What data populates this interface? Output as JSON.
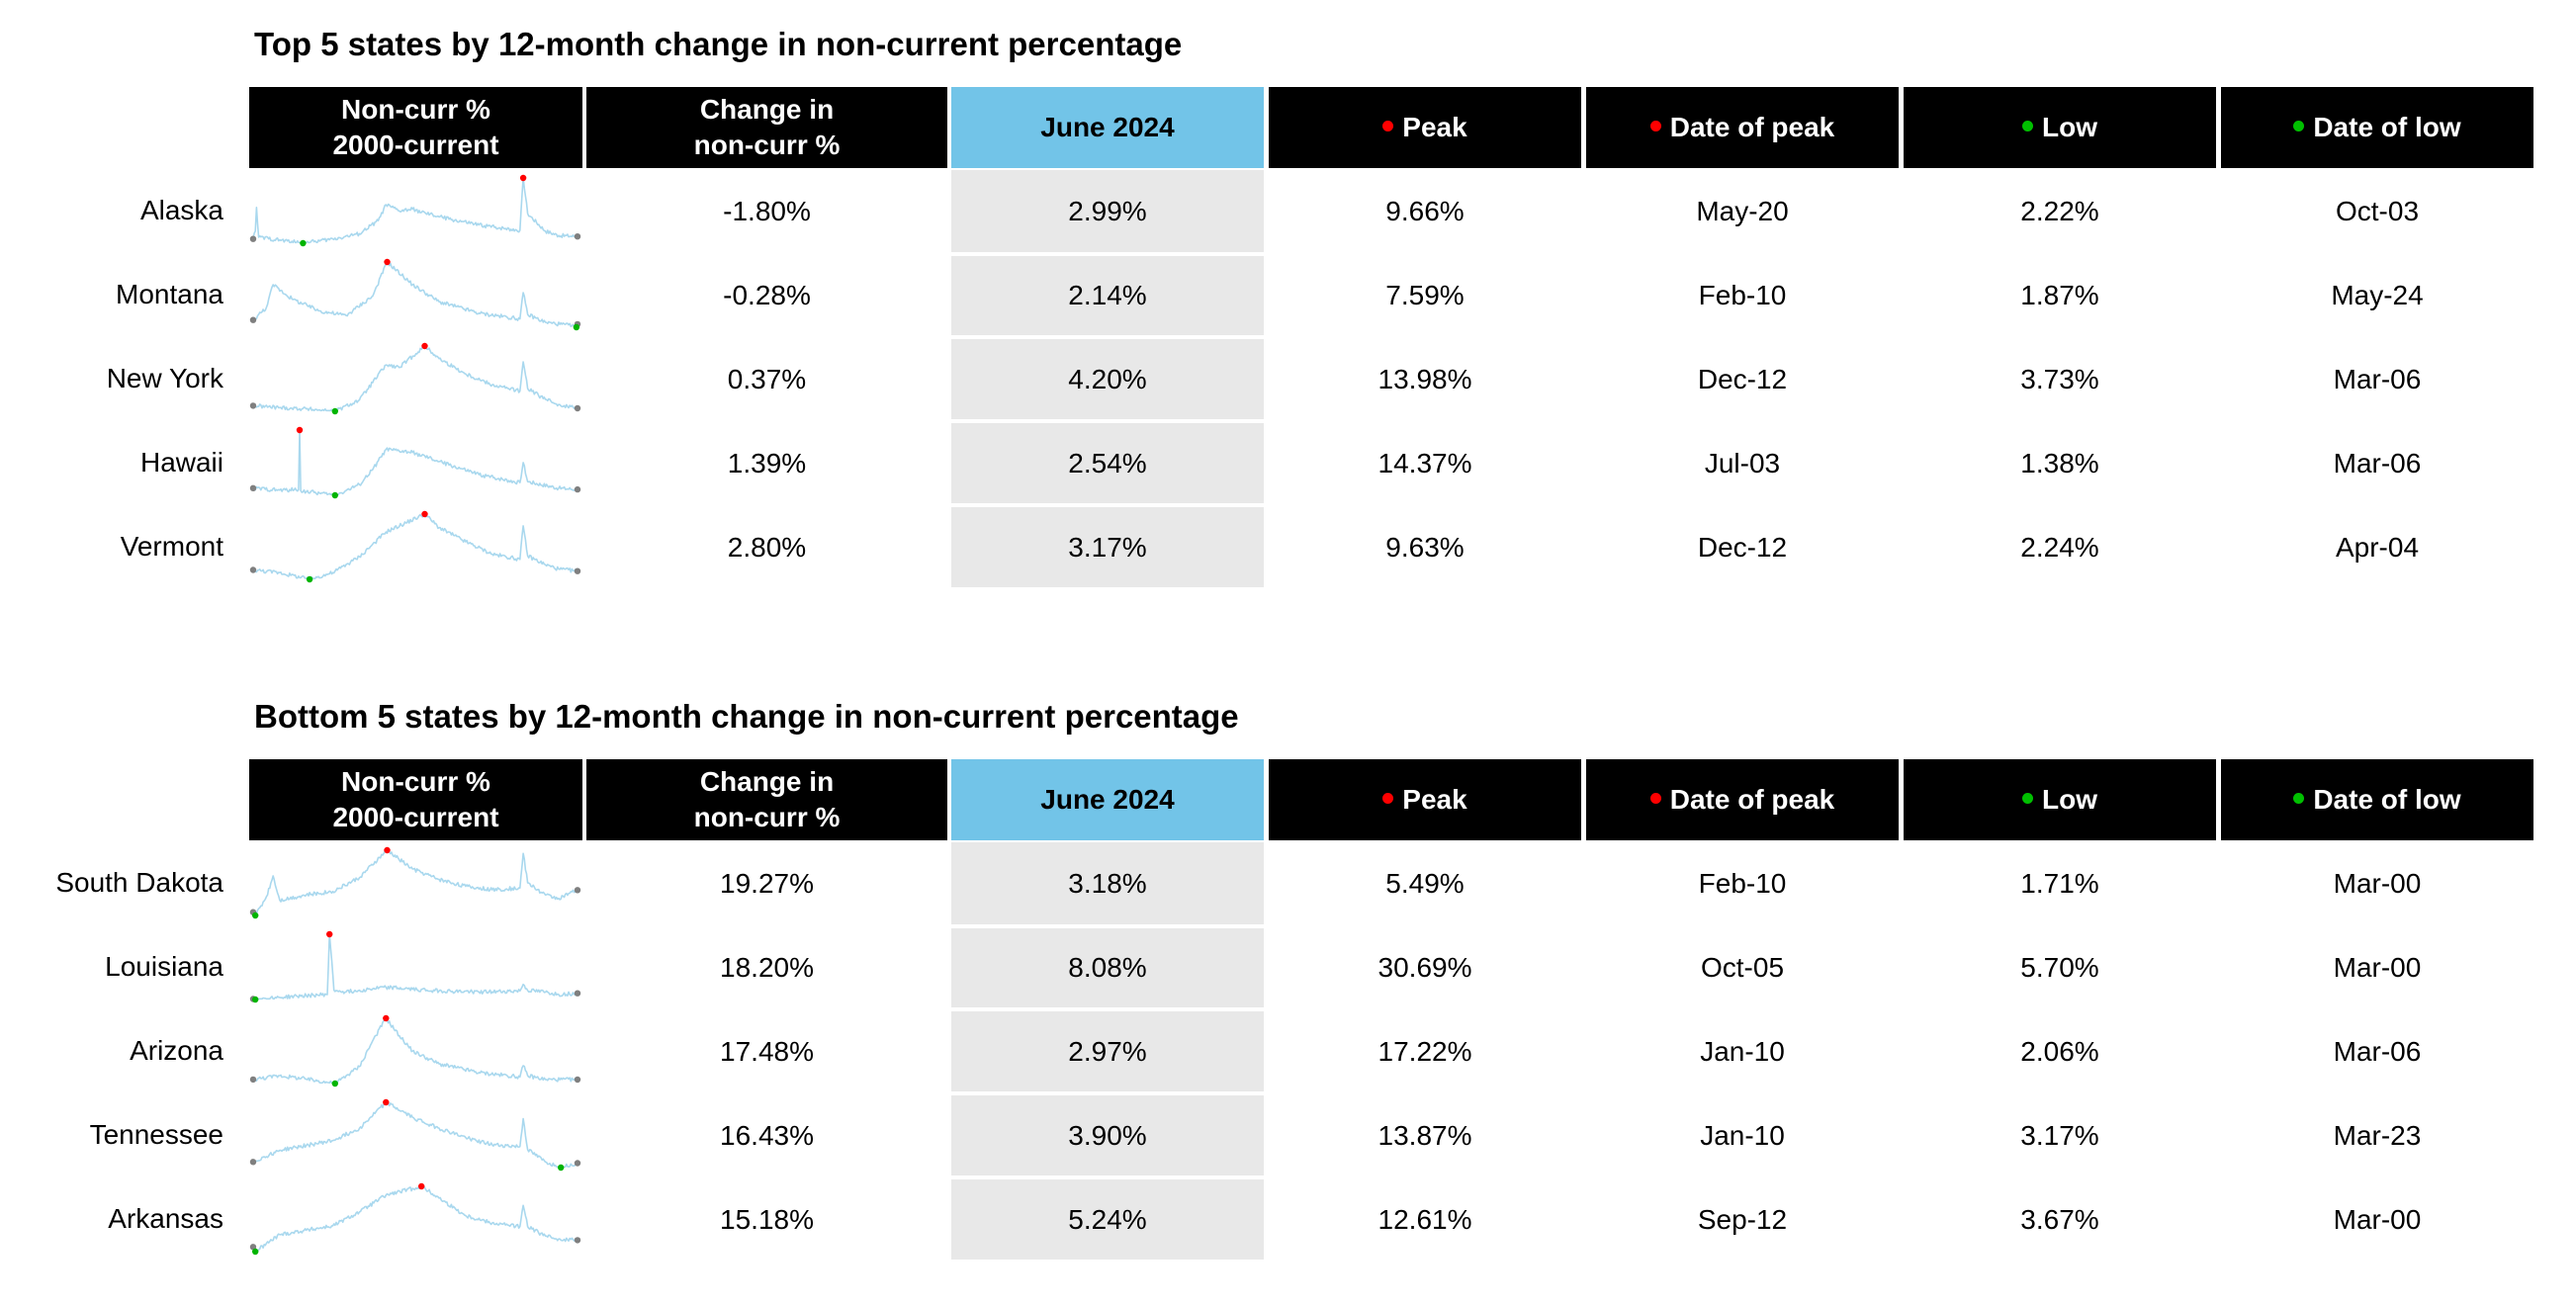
{
  "colors": {
    "header_bg": "#000000",
    "header_text": "#ffffff",
    "highlight_header": "#72c4e8",
    "highlight_cells": "#e8e8e8",
    "sparkline": "#a9d8ee",
    "peak_marker": "#ff0000",
    "low_marker": "#00b400",
    "endpoint_marker": "#7f7f7f"
  },
  "headers": {
    "spark_line1": "Non-curr %",
    "spark_line2": "2000-current",
    "change_line1": "Change in",
    "change_line2": "non-curr %",
    "month": "June 2024",
    "peak": "Peak",
    "peak_date": "Date of peak",
    "low": "Low",
    "low_date": "Date of low"
  },
  "top": {
    "title": "Top 5 states by 12-month change in non-current percentage",
    "rows": [
      {
        "state": "Alaska",
        "change": "-1.80%",
        "current": "2.99%",
        "peak": "9.66%",
        "peak_date": "May-20",
        "low": "2.22%",
        "low_date": "Oct-03"
      },
      {
        "state": "Montana",
        "change": "-0.28%",
        "current": "2.14%",
        "peak": "7.59%",
        "peak_date": "Feb-10",
        "low": "1.87%",
        "low_date": "May-24"
      },
      {
        "state": "New York",
        "change": "0.37%",
        "current": "4.20%",
        "peak": "13.98%",
        "peak_date": "Dec-12",
        "low": "3.73%",
        "low_date": "Mar-06"
      },
      {
        "state": "Hawaii",
        "change": "1.39%",
        "current": "2.54%",
        "peak": "14.37%",
        "peak_date": "Jul-03",
        "low": "1.38%",
        "low_date": "Mar-06"
      },
      {
        "state": "Vermont",
        "change": "2.80%",
        "current": "3.17%",
        "peak": "9.63%",
        "peak_date": "Dec-12",
        "low": "2.24%",
        "low_date": "Apr-04"
      }
    ]
  },
  "bottom": {
    "title": "Bottom 5 states by 12-month change in non-current percentage",
    "rows": [
      {
        "state": "South Dakota",
        "change": "19.27%",
        "current": "3.18%",
        "peak": "5.49%",
        "peak_date": "Feb-10",
        "low": "1.71%",
        "low_date": "Mar-00"
      },
      {
        "state": "Louisiana",
        "change": "18.20%",
        "current": "8.08%",
        "peak": "30.69%",
        "peak_date": "Oct-05",
        "low": "5.70%",
        "low_date": "Mar-00"
      },
      {
        "state": "Arizona",
        "change": "17.48%",
        "current": "2.97%",
        "peak": "17.22%",
        "peak_date": "Jan-10",
        "low": "2.06%",
        "low_date": "Mar-06"
      },
      {
        "state": "Tennessee",
        "change": "16.43%",
        "current": "3.90%",
        "peak": "13.87%",
        "peak_date": "Jan-10",
        "low": "3.17%",
        "low_date": "Mar-23"
      },
      {
        "state": "Arkansas",
        "change": "15.18%",
        "current": "5.24%",
        "peak": "12.61%",
        "peak_date": "Sep-12",
        "low": "3.67%",
        "low_date": "Mar-00"
      }
    ]
  },
  "chart_data": {
    "type": "table",
    "sparkline_period": {
      "start": "Jan-00",
      "end": "Jun-24"
    },
    "sparklines": [
      {
        "state": "Alaska",
        "start": 2.7,
        "end": 2.99,
        "peak": 9.66,
        "peak_date": "May-20",
        "low": 2.22,
        "low_date": "Oct-03",
        "knots": [
          [
            "Jan-00",
            2.7
          ],
          [
            "Mar-00",
            3.6
          ],
          [
            "Apr-00",
            6.3
          ],
          [
            "Jun-00",
            2.9
          ],
          [
            "Oct-03",
            2.22
          ],
          [
            "Jan-06",
            2.7
          ],
          [
            "Jan-08",
            3.3
          ],
          [
            "Jun-09",
            4.8
          ],
          [
            "Jan-10",
            6.6
          ],
          [
            "Jan-11",
            5.9
          ],
          [
            "Jan-12",
            6.1
          ],
          [
            "Jan-13",
            5.6
          ],
          [
            "Jan-15",
            4.9
          ],
          [
            "Jan-17",
            4.3
          ],
          [
            "Jan-19",
            3.9
          ],
          [
            "Feb-20",
            3.7
          ],
          [
            "May-20",
            9.66
          ],
          [
            "Sep-20",
            5.6
          ],
          [
            "Jan-22",
            3.6
          ],
          [
            "Jan-23",
            3.1
          ],
          [
            "Jun-24",
            2.99
          ]
        ]
      },
      {
        "state": "Montana",
        "start": 2.5,
        "end": 2.14,
        "peak": 7.59,
        "peak_date": "Feb-10",
        "low": 1.87,
        "low_date": "May-24",
        "knots": [
          [
            "Jan-00",
            2.5
          ],
          [
            "Jan-01",
            3.6
          ],
          [
            "Jul-01",
            5.6
          ],
          [
            "Jan-03",
            4.3
          ],
          [
            "Jan-05",
            3.3
          ],
          [
            "Jan-07",
            2.9
          ],
          [
            "Jan-09",
            4.6
          ],
          [
            "Feb-10",
            7.59
          ],
          [
            "Jan-12",
            5.6
          ],
          [
            "Jan-14",
            4.1
          ],
          [
            "Jan-17",
            3.1
          ],
          [
            "Feb-20",
            2.6
          ],
          [
            "May-20",
            4.9
          ],
          [
            "Sep-20",
            3.0
          ],
          [
            "Jan-22",
            2.3
          ],
          [
            "Jan-24",
            2.0
          ],
          [
            "May-24",
            1.87
          ],
          [
            "Jun-24",
            2.14
          ]
        ]
      },
      {
        "state": "New York",
        "start": 4.6,
        "end": 4.2,
        "peak": 13.98,
        "peak_date": "Dec-12",
        "low": 3.73,
        "low_date": "Mar-06",
        "knots": [
          [
            "Jan-00",
            4.6
          ],
          [
            "Jan-02",
            4.3
          ],
          [
            "Jan-04",
            4.1
          ],
          [
            "Mar-06",
            3.73
          ],
          [
            "Jan-08",
            5.5
          ],
          [
            "Jan-10",
            11.0
          ],
          [
            "Jan-11",
            10.6
          ],
          [
            "Dec-12",
            13.98
          ],
          [
            "Jan-14",
            12.0
          ],
          [
            "Jan-16",
            9.6
          ],
          [
            "Jan-18",
            7.9
          ],
          [
            "Feb-20",
            6.9
          ],
          [
            "May-20",
            11.5
          ],
          [
            "Sep-20",
            7.3
          ],
          [
            "Jan-22",
            5.6
          ],
          [
            "Jan-23",
            4.8
          ],
          [
            "Jun-24",
            4.2
          ]
        ]
      },
      {
        "state": "Hawaii",
        "start": 2.8,
        "end": 2.54,
        "peak": 14.37,
        "peak_date": "Jul-03",
        "low": 1.38,
        "low_date": "Mar-06",
        "knots": [
          [
            "Jan-00",
            2.8
          ],
          [
            "Jan-02",
            2.4
          ],
          [
            "Jun-03",
            2.5
          ],
          [
            "Jul-03",
            14.37
          ],
          [
            "Aug-03",
            2.3
          ],
          [
            "Jan-05",
            1.8
          ],
          [
            "Mar-06",
            1.38
          ],
          [
            "Jan-08",
            3.5
          ],
          [
            "Jan-09",
            6.5
          ],
          [
            "Jan-10",
            10.5
          ],
          [
            "Jan-12",
            9.9
          ],
          [
            "Jan-14",
            8.1
          ],
          [
            "Jan-17",
            5.5
          ],
          [
            "Feb-20",
            3.9
          ],
          [
            "May-20",
            7.9
          ],
          [
            "Sep-20",
            4.1
          ],
          [
            "Jan-23",
            2.8
          ],
          [
            "Jun-24",
            2.54
          ]
        ]
      },
      {
        "state": "Vermont",
        "start": 3.3,
        "end": 3.17,
        "peak": 9.63,
        "peak_date": "Dec-12",
        "low": 2.24,
        "low_date": "Apr-04",
        "knots": [
          [
            "Jan-00",
            3.3
          ],
          [
            "Jan-02",
            3.0
          ],
          [
            "Apr-04",
            2.24
          ],
          [
            "Jan-06",
            3.0
          ],
          [
            "Jan-08",
            4.8
          ],
          [
            "Jan-10",
            7.6
          ],
          [
            "Dec-12",
            9.63
          ],
          [
            "Jan-14",
            8.1
          ],
          [
            "Jan-16",
            6.5
          ],
          [
            "Jan-18",
            5.1
          ],
          [
            "Feb-20",
            4.5
          ],
          [
            "May-20",
            8.3
          ],
          [
            "Sep-20",
            4.9
          ],
          [
            "Jan-22",
            3.9
          ],
          [
            "Jan-23",
            3.4
          ],
          [
            "Jun-24",
            3.17
          ]
        ]
      },
      {
        "state": "South Dakota",
        "start": 1.9,
        "end": 3.18,
        "peak": 5.49,
        "peak_date": "Feb-10",
        "low": 1.71,
        "low_date": "Mar-00",
        "knots": [
          [
            "Jan-00",
            1.9
          ],
          [
            "Mar-00",
            1.71
          ],
          [
            "Jan-01",
            2.8
          ],
          [
            "Jul-01",
            4.0
          ],
          [
            "Jan-02",
            2.6
          ],
          [
            "Jan-04",
            2.9
          ],
          [
            "Jan-06",
            3.1
          ],
          [
            "Jan-08",
            3.9
          ],
          [
            "Feb-10",
            5.49
          ],
          [
            "Jan-12",
            4.4
          ],
          [
            "Jan-14",
            3.8
          ],
          [
            "Jan-16",
            3.4
          ],
          [
            "Jan-18",
            3.2
          ],
          [
            "Feb-20",
            3.3
          ],
          [
            "May-20",
            5.3
          ],
          [
            "Sep-20",
            3.6
          ],
          [
            "Jan-22",
            2.9
          ],
          [
            "Jan-23",
            2.7
          ],
          [
            "Jun-24",
            3.18
          ]
        ]
      },
      {
        "state": "Louisiana",
        "start": 5.9,
        "end": 8.08,
        "peak": 30.69,
        "peak_date": "Oct-05",
        "low": 5.7,
        "low_date": "Mar-00",
        "knots": [
          [
            "Jan-00",
            5.9
          ],
          [
            "Mar-00",
            5.7
          ],
          [
            "Jan-02",
            6.5
          ],
          [
            "Jan-04",
            7.2
          ],
          [
            "Aug-05",
            7.6
          ],
          [
            "Oct-05",
            30.69
          ],
          [
            "Feb-06",
            9.3
          ],
          [
            "Jan-07",
            8.6
          ],
          [
            "Jan-10",
            10.4
          ],
          [
            "Jan-12",
            9.6
          ],
          [
            "Jan-15",
            8.8
          ],
          [
            "Jan-18",
            8.6
          ],
          [
            "Feb-20",
            9.0
          ],
          [
            "May-20",
            11.5
          ],
          [
            "Sep-20",
            9.2
          ],
          [
            "Jan-22",
            8.5
          ],
          [
            "Jan-23",
            7.6
          ],
          [
            "Jun-24",
            8.08
          ]
        ]
      },
      {
        "state": "Arizona",
        "start": 3.0,
        "end": 2.97,
        "peak": 17.22,
        "peak_date": "Jan-10",
        "low": 2.06,
        "low_date": "Mar-06",
        "knots": [
          [
            "Jan-00",
            3.0
          ],
          [
            "Jan-02",
            3.9
          ],
          [
            "Jan-04",
            3.1
          ],
          [
            "Mar-06",
            2.06
          ],
          [
            "Jan-08",
            6.0
          ],
          [
            "Jan-09",
            12.0
          ],
          [
            "Jan-10",
            17.22
          ],
          [
            "Jan-11",
            13.2
          ],
          [
            "Jan-12",
            9.6
          ],
          [
            "Jan-14",
            6.6
          ],
          [
            "Jan-17",
            4.6
          ],
          [
            "Feb-20",
            3.6
          ],
          [
            "May-20",
            6.2
          ],
          [
            "Sep-20",
            3.9
          ],
          [
            "Jan-22",
            3.0
          ],
          [
            "Jun-24",
            2.97
          ]
        ]
      },
      {
        "state": "Tennessee",
        "start": 4.1,
        "end": 3.9,
        "peak": 13.87,
        "peak_date": "Jan-10",
        "low": 3.17,
        "low_date": "Mar-23",
        "knots": [
          [
            "Jan-00",
            4.1
          ],
          [
            "Jan-02",
            6.0
          ],
          [
            "Jan-04",
            6.8
          ],
          [
            "Jan-06",
            7.6
          ],
          [
            "Jan-08",
            9.6
          ],
          [
            "Jan-10",
            13.87
          ],
          [
            "Jan-12",
            11.4
          ],
          [
            "Jan-14",
            9.6
          ],
          [
            "Jan-16",
            8.1
          ],
          [
            "Jan-18",
            6.9
          ],
          [
            "Feb-20",
            6.6
          ],
          [
            "May-20",
            11.2
          ],
          [
            "Sep-20",
            6.1
          ],
          [
            "Jan-22",
            4.1
          ],
          [
            "Mar-23",
            3.17
          ],
          [
            "Jun-24",
            3.9
          ]
        ]
      },
      {
        "state": "Arkansas",
        "start": 4.3,
        "end": 5.24,
        "peak": 12.61,
        "peak_date": "Sep-12",
        "low": 3.67,
        "low_date": "Mar-00",
        "knots": [
          [
            "Jan-00",
            4.3
          ],
          [
            "Mar-00",
            3.67
          ],
          [
            "Jan-02",
            6.0
          ],
          [
            "Jan-04",
            6.6
          ],
          [
            "Jan-06",
            7.2
          ],
          [
            "Jan-08",
            9.1
          ],
          [
            "Jan-10",
            11.4
          ],
          [
            "Sep-12",
            12.61
          ],
          [
            "Jan-14",
            11.0
          ],
          [
            "Jan-16",
            8.6
          ],
          [
            "Jan-18",
            7.6
          ],
          [
            "Feb-20",
            7.1
          ],
          [
            "May-20",
            10.0
          ],
          [
            "Sep-20",
            7.1
          ],
          [
            "Jan-22",
            5.8
          ],
          [
            "Jan-23",
            5.4
          ],
          [
            "Jun-24",
            5.24
          ]
        ]
      }
    ]
  }
}
